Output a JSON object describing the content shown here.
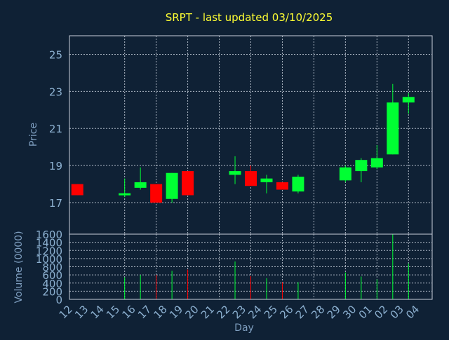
{
  "chart_data": {
    "type": "candlestick",
    "title": "SRPT - last updated 03/10/2025",
    "xlabel": "Day",
    "price_panel": {
      "ylabel": "Price",
      "ylim": [
        15.3,
        26.0
      ],
      "yticks": [
        17,
        19,
        21,
        23,
        25
      ],
      "grid": true
    },
    "volume_panel": {
      "ylabel": "Volume (0000)",
      "ylim": [
        0,
        1600
      ],
      "yticks": [
        0,
        200,
        400,
        600,
        800,
        1000,
        1200,
        1400,
        1600
      ],
      "grid": true
    },
    "x_ticks": [
      "12",
      "13",
      "14",
      "15",
      "16",
      "17",
      "18",
      "19",
      "20",
      "21",
      "22",
      "23",
      "24",
      "25",
      "26",
      "27",
      "28",
      "29",
      "30",
      "01",
      "02",
      "03",
      "04"
    ],
    "vertical_grid_at": [
      "15",
      "17",
      "19",
      "21",
      "23",
      "25",
      "27",
      "29",
      "01",
      "03"
    ],
    "colors": {
      "up": "#00ff33",
      "down": "#ff0000",
      "background": "#0f2135"
    },
    "candles": [
      {
        "day": "12",
        "open": 18.0,
        "high": 18.0,
        "low": 17.4,
        "close": 17.4
      },
      {
        "day": "15",
        "open": 17.4,
        "high": 18.3,
        "low": 17.3,
        "close": 17.5
      },
      {
        "day": "16",
        "open": 17.8,
        "high": 18.9,
        "low": 17.7,
        "close": 18.1
      },
      {
        "day": "17",
        "open": 18.0,
        "high": 18.0,
        "low": 17.0,
        "close": 17.0
      },
      {
        "day": "18",
        "open": 17.2,
        "high": 18.6,
        "low": 17.0,
        "close": 18.6
      },
      {
        "day": "19",
        "open": 18.7,
        "high": 18.7,
        "low": 17.4,
        "close": 17.4
      },
      {
        "day": "22",
        "open": 18.5,
        "high": 19.5,
        "low": 18.0,
        "close": 18.7
      },
      {
        "day": "23",
        "open": 18.7,
        "high": 19.0,
        "low": 17.9,
        "close": 17.9
      },
      {
        "day": "24",
        "open": 18.1,
        "high": 18.5,
        "low": 17.5,
        "close": 18.3
      },
      {
        "day": "25",
        "open": 18.1,
        "high": 18.1,
        "low": 17.7,
        "close": 17.7
      },
      {
        "day": "26",
        "open": 17.6,
        "high": 18.5,
        "low": 17.5,
        "close": 18.4
      },
      {
        "day": "29",
        "open": 18.2,
        "high": 19.0,
        "low": 18.1,
        "close": 18.9
      },
      {
        "day": "30",
        "open": 18.7,
        "high": 19.4,
        "low": 18.1,
        "close": 19.3
      },
      {
        "day": "01",
        "open": 18.9,
        "high": 20.1,
        "low": 18.8,
        "close": 19.4
      },
      {
        "day": "02",
        "open": 19.6,
        "high": 23.4,
        "low": 19.6,
        "close": 22.4
      },
      {
        "day": "03",
        "open": 22.4,
        "high": 22.9,
        "low": 21.8,
        "close": 22.7
      }
    ],
    "volume": [
      {
        "day": "15",
        "value": 540,
        "direction": "up"
      },
      {
        "day": "16",
        "value": 600,
        "direction": "up"
      },
      {
        "day": "17",
        "value": 600,
        "direction": "down"
      },
      {
        "day": "18",
        "value": 700,
        "direction": "up"
      },
      {
        "day": "19",
        "value": 730,
        "direction": "down"
      },
      {
        "day": "22",
        "value": 930,
        "direction": "up"
      },
      {
        "day": "23",
        "value": 570,
        "direction": "down"
      },
      {
        "day": "24",
        "value": 520,
        "direction": "up"
      },
      {
        "day": "25",
        "value": 420,
        "direction": "down"
      },
      {
        "day": "26",
        "value": 420,
        "direction": "up"
      },
      {
        "day": "29",
        "value": 660,
        "direction": "up"
      },
      {
        "day": "30",
        "value": 560,
        "direction": "up"
      },
      {
        "day": "01",
        "value": 490,
        "direction": "up"
      },
      {
        "day": "02",
        "value": 1600,
        "direction": "up"
      },
      {
        "day": "03",
        "value": 880,
        "direction": "up"
      }
    ]
  }
}
